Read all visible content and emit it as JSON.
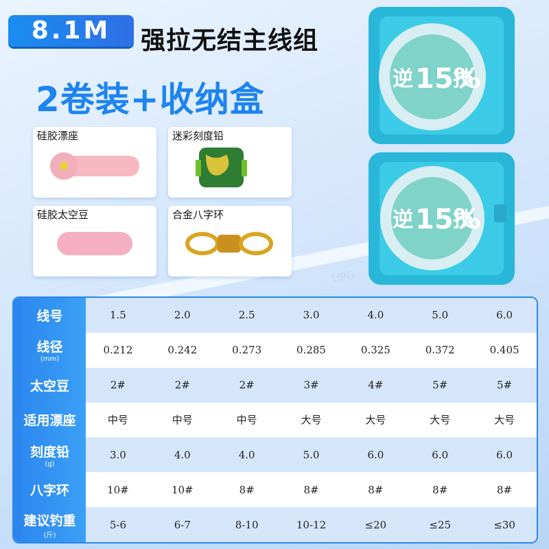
{
  "header": {
    "badge": "8.1M",
    "title": "强拉无结主线组",
    "subtitle": "2卷装+收纳盒"
  },
  "accessories": [
    "硅胶漂座",
    "迷彩刻度铅",
    "硅胶太空豆",
    "合金八字环"
  ],
  "product": {
    "rod_text": "UPG",
    "spool_left": "逆",
    "spool_number": "15%",
    "spool_right": "技"
  },
  "table": {
    "rows": [
      {
        "label": "线号",
        "cells": [
          "1.5",
          "2.0",
          "2.5",
          "3.0",
          "4.0",
          "5.0",
          "6.0"
        ]
      },
      {
        "label": "线径",
        "unit": "(mm)",
        "cells": [
          "0.212",
          "0.242",
          "0.273",
          "0.285",
          "0.325",
          "0.372",
          "0.405"
        ]
      },
      {
        "label": "太空豆",
        "cells": [
          "2#",
          "2#",
          "2#",
          "3#",
          "4#",
          "5#",
          "5#"
        ]
      },
      {
        "label": "适用漂座",
        "cells": [
          "中号",
          "中号",
          "中号",
          "大号",
          "大号",
          "大号",
          "大号"
        ]
      },
      {
        "label": "刻度铅",
        "unit": "(g)",
        "cells": [
          "3.0",
          "4.0",
          "4.0",
          "5.0",
          "6.0",
          "6.0",
          "6.0"
        ]
      },
      {
        "label": "八字环",
        "cells": [
          "10#",
          "10#",
          "8#",
          "8#",
          "8#",
          "8#",
          "8#"
        ]
      },
      {
        "label": "建议钓重",
        "unit": "(斤)",
        "cells": [
          "5-6",
          "6-7",
          "8-10",
          "10-12",
          "≤20",
          "≤25",
          "≤30"
        ]
      }
    ]
  }
}
